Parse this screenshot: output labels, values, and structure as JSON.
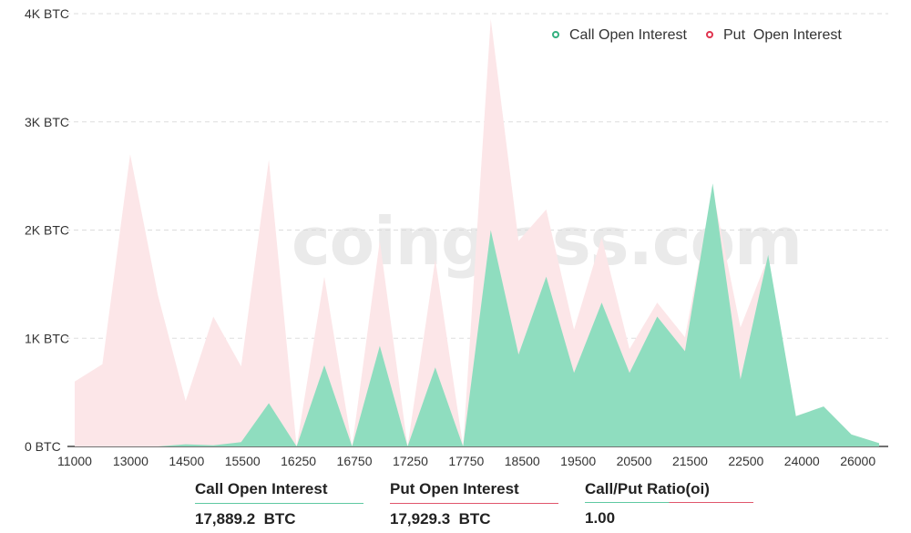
{
  "chart_data": {
    "type": "area",
    "x": [
      "11000",
      "12000",
      "13000",
      "14000",
      "14500",
      "15000",
      "15500",
      "16000",
      "16250",
      "16500",
      "16750",
      "17000",
      "17250",
      "17500",
      "17750",
      "18000",
      "18500",
      "19000",
      "19500",
      "20000",
      "20500",
      "21000",
      "21500",
      "22000",
      "22500",
      "23000",
      "24000",
      "25000",
      "26000",
      "28000"
    ],
    "xtick_labels": [
      "11000",
      "13000",
      "14500",
      "15500",
      "16250",
      "16750",
      "17250",
      "17750",
      "18500",
      "19500",
      "20500",
      "21500",
      "22500",
      "24000",
      "26000"
    ],
    "ytick_labels": [
      "0 BTC",
      "1K BTC",
      "2K BTC",
      "3K BTC",
      "4K BTC"
    ],
    "ylim": [
      0,
      4000
    ],
    "grid": true,
    "legend_position": "top-right",
    "series": [
      {
        "name": "Call Open Interest",
        "color": "#8fddbf",
        "marker_color": "#34b07f",
        "values": [
          0,
          0,
          0,
          0,
          20,
          10,
          40,
          400,
          0,
          750,
          0,
          930,
          0,
          730,
          0,
          2000,
          850,
          1570,
          680,
          1330,
          680,
          1200,
          880,
          2430,
          620,
          1770,
          280,
          370,
          110,
          30
        ]
      },
      {
        "name": "Put  Open Interest",
        "color": "#fce6e8",
        "marker_color": "#e0344f",
        "values": [
          600,
          760,
          2700,
          1400,
          420,
          1200,
          740,
          2650,
          0,
          1570,
          0,
          1900,
          0,
          1730,
          0,
          3950,
          1900,
          2190,
          1080,
          1930,
          900,
          1330,
          1010,
          2370,
          1100,
          1750,
          280,
          370,
          110,
          30
        ]
      }
    ]
  },
  "watermark": "coinglass.com",
  "summary": {
    "call_label": "Call Open Interest",
    "call_value": "17,889.2  BTC",
    "put_label": "Put Open Interest",
    "put_value": "17,929.3  BTC",
    "ratio_label": "Call/Put Ratio(oi)",
    "ratio_value": "1.00"
  }
}
